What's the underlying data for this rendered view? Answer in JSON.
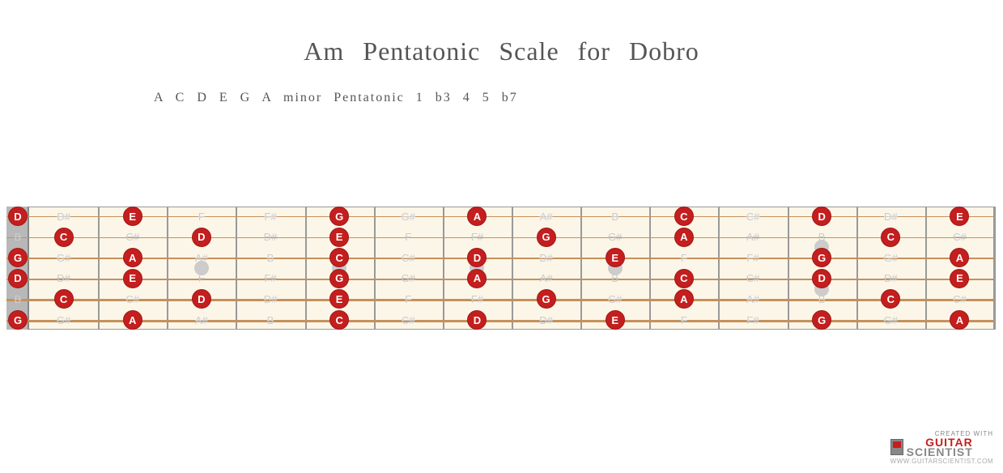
{
  "title": "Am  Pentatonic     Scale      for  Dobro",
  "subtitle": "A C D E G   A minor   Pentatonic      1  b3   4  5  b7",
  "credit": {
    "created": "CREATED WITH",
    "brand1": "GUITAR",
    "brand2": "SCIENTIST",
    "url": "WWW.GUITARSCIENTIST.COM"
  },
  "fretboard": {
    "bg_color": "#fcf6e8",
    "nut_color": "#b8b8b8",
    "fret_color": "#999999",
    "string_color": "#c4915c",
    "marker_color": "#cccccc",
    "note_active_bg": "#c41e1e",
    "note_active_fg": "#ffffff",
    "note_inactive_fg": "#cccccc",
    "num_frets": 14,
    "nut_width": 28,
    "board_width": 1220,
    "board_height": 152,
    "string_count": 6,
    "string_top_margin": 12,
    "string_spacing": 25.6,
    "marker_frets_single": [
      3,
      5,
      7,
      9
    ],
    "marker_frets_double": [
      12
    ],
    "tuning": [
      "D",
      "B",
      "G",
      "D",
      "B",
      "G"
    ],
    "scale_notes": [
      "A",
      "C",
      "D",
      "E",
      "G"
    ],
    "chromatic": [
      "C",
      "C#",
      "D",
      "D#",
      "E",
      "F",
      "F#",
      "G",
      "G#",
      "A",
      "A#",
      "B"
    ]
  }
}
